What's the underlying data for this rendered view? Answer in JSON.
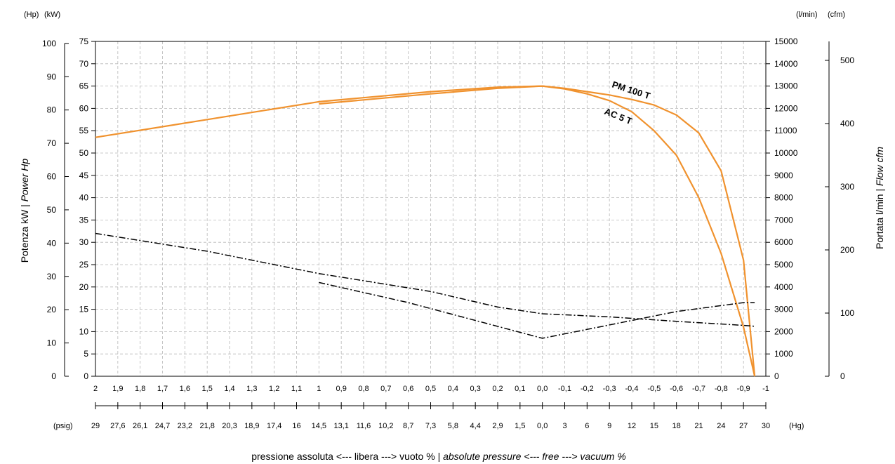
{
  "chart_data": {
    "type": "line",
    "units": {
      "hp": "(Hp)",
      "kw": "(kW)",
      "lmin": "(l/min)",
      "cfm": "(cfm)",
      "psig": "(psig)",
      "hg": "(Hg)"
    },
    "ylabel_left": {
      "regular": "Potenza kW | ",
      "italic": "Power Hp"
    },
    "ylabel_right": {
      "regular": "Portata l/min | ",
      "italic": "Flow cfm"
    },
    "xlabel": {
      "part1": "pressione assoluta <--- libera --->  vuoto % | ",
      "part2_italic": "absolute pressure <--- free --->  vacuum %"
    },
    "axes": {
      "kw": {
        "range": [
          0,
          75
        ],
        "ticks": [
          "0",
          "5",
          "10",
          "15",
          "20",
          "25",
          "30",
          "35",
          "40",
          "45",
          "50",
          "55",
          "60",
          "65",
          "70",
          "75"
        ]
      },
      "hp": {
        "range": [
          0,
          100.6
        ],
        "ticks": [
          "0",
          "10",
          "20",
          "30",
          "40",
          "50",
          "60",
          "70",
          "80",
          "90",
          "100"
        ]
      },
      "lmin": {
        "range": [
          0,
          15000
        ],
        "ticks": [
          "0",
          "1000",
          "2000",
          "3000",
          "4000",
          "5000",
          "6000",
          "7000",
          "8000",
          "9000",
          "10000",
          "11000",
          "12000",
          "13000",
          "14000",
          "15000"
        ]
      },
      "cfm": {
        "range": [
          0,
          530
        ],
        "ticks": [
          "0",
          "100",
          "200",
          "300",
          "400",
          "500"
        ]
      },
      "x_bar": {
        "range": [
          2,
          -1
        ],
        "ticks": [
          "2",
          "1,9",
          "1,8",
          "1,7",
          "1,6",
          "1,5",
          "1,4",
          "1,3",
          "1,2",
          "1,1",
          "1",
          "0,9",
          "0,8",
          "0,7",
          "0,6",
          "0,5",
          "0,4",
          "0,3",
          "0,2",
          "0,1",
          "0,0",
          "-0,1",
          "-0,2",
          "-0,3",
          "-0,4",
          "-0,5",
          "-0,6",
          "-0,7",
          "-0,8",
          "-0,9",
          "-1"
        ]
      },
      "x_psig": [
        "29",
        "27,6",
        "26,1",
        "24,7",
        "23,2",
        "21,8",
        "20,3",
        "18,9",
        "17,4",
        "16",
        "14,5",
        "13,1",
        "11,6",
        "10,2",
        "8,7",
        "7,3",
        "5,8",
        "4,4",
        "2,9",
        "1,5",
        "0,0"
      ],
      "x_hg": [
        "3",
        "6",
        "9",
        "12",
        "15",
        "18",
        "21",
        "24",
        "27",
        "30"
      ]
    },
    "grid": true,
    "series": [
      {
        "name": "PM 100 T",
        "kind": "flow",
        "color": "#f0922e",
        "x": [
          2.0,
          1.5,
          1.0,
          0.5,
          0.2,
          0.0,
          -0.1,
          -0.2,
          -0.3,
          -0.4,
          -0.5,
          -0.6,
          -0.7,
          -0.8,
          -0.9,
          -0.95
        ],
        "y": [
          10700,
          11500,
          12300,
          12750,
          12950,
          13000,
          12900,
          12750,
          12600,
          12400,
          12150,
          11700,
          10900,
          9200,
          5200,
          0
        ]
      },
      {
        "name": "AC 5 T",
        "kind": "flow",
        "color": "#f0922e",
        "x": [
          1.0,
          0.5,
          0.2,
          0.0,
          -0.1,
          -0.2,
          -0.3,
          -0.4,
          -0.5,
          -0.6,
          -0.7,
          -0.8,
          -0.9,
          -0.95
        ],
        "y": [
          12200,
          12650,
          12900,
          13000,
          12870,
          12650,
          12350,
          11850,
          11000,
          9900,
          8000,
          5500,
          2200,
          0
        ]
      },
      {
        "kind": "power",
        "x": [
          2.0,
          1.5,
          1.0,
          0.5,
          0.2,
          0.0,
          -0.3,
          -0.6,
          -0.9,
          -0.95
        ],
        "y": [
          32,
          28,
          23,
          19,
          15.5,
          14,
          13.3,
          12.3,
          11.4,
          11.2
        ]
      },
      {
        "kind": "power",
        "x": [
          1.0,
          0.6,
          0.3,
          0.0,
          -0.3,
          -0.6,
          -0.9,
          -0.95
        ],
        "y": [
          21,
          16.5,
          12.5,
          8.5,
          11.5,
          14.5,
          16.5,
          16.5
        ]
      }
    ]
  }
}
